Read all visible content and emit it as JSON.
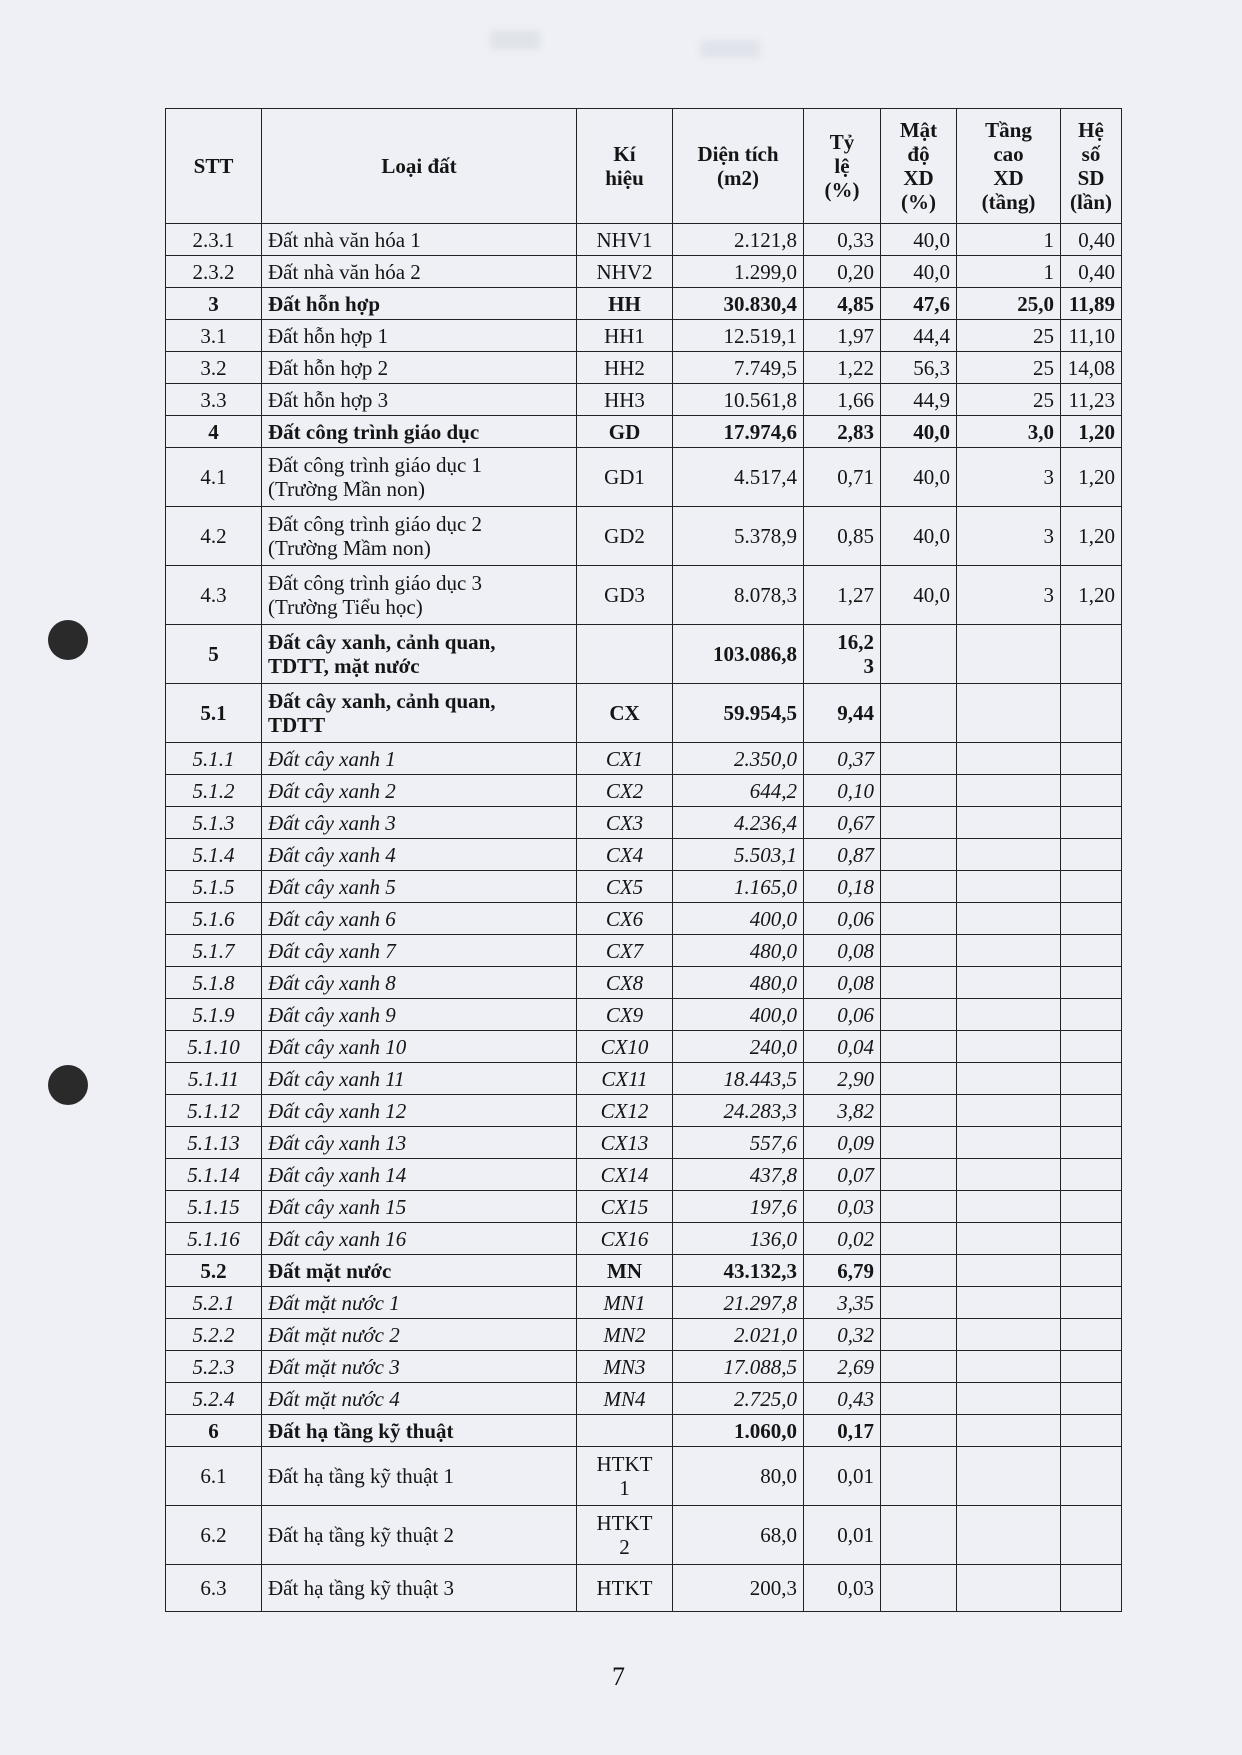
{
  "table": {
    "headers": [
      "STT",
      "Loại đất",
      "Kí\nhiệu",
      "Diện tích\n(m2)",
      "Tỷ\nlệ\n(%)",
      "Mật\nđộ\nXD\n(%)",
      "Tầng\ncao\nXD\n(tầng)",
      "Hệ số\nSD\n(lần)"
    ],
    "rows": [
      {
        "style": "normal",
        "size": "single",
        "cells": [
          "2.3.1",
          "Đất nhà văn hóa 1",
          "NHV1",
          "2.121,8",
          "0,33",
          "40,0",
          "1",
          "0,40"
        ]
      },
      {
        "style": "normal",
        "size": "single",
        "cells": [
          "2.3.2",
          "Đất nhà văn hóa 2",
          "NHV2",
          "1.299,0",
          "0,20",
          "40,0",
          "1",
          "0,40"
        ]
      },
      {
        "style": "bold",
        "size": "single",
        "cells": [
          "3",
          "Đất hỗn hợp",
          "HH",
          "30.830,4",
          "4,85",
          "47,6",
          "25,0",
          "11,89"
        ]
      },
      {
        "style": "normal",
        "size": "single",
        "cells": [
          "3.1",
          "Đất hỗn hợp 1",
          "HH1",
          "12.519,1",
          "1,97",
          "44,4",
          "25",
          "11,10"
        ]
      },
      {
        "style": "normal",
        "size": "single",
        "cells": [
          "3.2",
          "Đất hỗn hợp 2",
          "HH2",
          "7.749,5",
          "1,22",
          "56,3",
          "25",
          "14,08"
        ]
      },
      {
        "style": "normal",
        "size": "single",
        "cells": [
          "3.3",
          "Đất hỗn hợp 3",
          "HH3",
          "10.561,8",
          "1,66",
          "44,9",
          "25",
          "11,23"
        ]
      },
      {
        "style": "bold",
        "size": "single",
        "cells": [
          "4",
          "Đất công trình giáo dục",
          "GD",
          "17.974,6",
          "2,83",
          "40,0",
          "3,0",
          "1,20"
        ]
      },
      {
        "style": "normal",
        "size": "double",
        "cells": [
          "4.1",
          "Đất công trình giáo dục 1\n(Trường Mần non)",
          "GD1",
          "4.517,4",
          "0,71",
          "40,0",
          "3",
          "1,20"
        ]
      },
      {
        "style": "normal",
        "size": "double",
        "cells": [
          "4.2",
          "Đất công trình giáo dục 2\n(Trường Mầm non)",
          "GD2",
          "5.378,9",
          "0,85",
          "40,0",
          "3",
          "1,20"
        ]
      },
      {
        "style": "normal",
        "size": "double",
        "cells": [
          "4.3",
          "Đất công trình giáo dục 3\n(Trường Tiểu học)",
          "GD3",
          "8.078,3",
          "1,27",
          "40,0",
          "3",
          "1,20"
        ]
      },
      {
        "style": "bold",
        "size": "double",
        "cells": [
          "5",
          "Đất cây xanh, cảnh quan,\nTDTT, mặt nước",
          "",
          "103.086,8",
          "16,2\n3",
          "",
          "",
          ""
        ]
      },
      {
        "style": "bold",
        "size": "double",
        "cells": [
          "5.1",
          "Đất cây xanh, cảnh quan,\nTDTT",
          "CX",
          "59.954,5",
          "9,44",
          "",
          "",
          ""
        ]
      },
      {
        "style": "italic",
        "size": "single",
        "cells": [
          "5.1.1",
          "Đất cây xanh 1",
          "CX1",
          "2.350,0",
          "0,37",
          "",
          "",
          ""
        ]
      },
      {
        "style": "italic",
        "size": "single",
        "cells": [
          "5.1.2",
          "Đất cây xanh 2",
          "CX2",
          "644,2",
          "0,10",
          "",
          "",
          ""
        ]
      },
      {
        "style": "italic",
        "size": "single",
        "cells": [
          "5.1.3",
          "Đất cây xanh 3",
          "CX3",
          "4.236,4",
          "0,67",
          "",
          "",
          ""
        ]
      },
      {
        "style": "italic",
        "size": "single",
        "cells": [
          "5.1.4",
          "Đất cây xanh 4",
          "CX4",
          "5.503,1",
          "0,87",
          "",
          "",
          ""
        ]
      },
      {
        "style": "italic",
        "size": "single",
        "cells": [
          "5.1.5",
          "Đất cây xanh 5",
          "CX5",
          "1.165,0",
          "0,18",
          "",
          "",
          ""
        ]
      },
      {
        "style": "italic",
        "size": "single",
        "cells": [
          "5.1.6",
          "Đất cây xanh 6",
          "CX6",
          "400,0",
          "0,06",
          "",
          "",
          ""
        ]
      },
      {
        "style": "italic",
        "size": "single",
        "cells": [
          "5.1.7",
          "Đất cây xanh 7",
          "CX7",
          "480,0",
          "0,08",
          "",
          "",
          ""
        ]
      },
      {
        "style": "italic",
        "size": "single",
        "cells": [
          "5.1.8",
          "Đất cây xanh 8",
          "CX8",
          "480,0",
          "0,08",
          "",
          "",
          ""
        ]
      },
      {
        "style": "italic",
        "size": "single",
        "cells": [
          "5.1.9",
          "Đất cây xanh 9",
          "CX9",
          "400,0",
          "0,06",
          "",
          "",
          ""
        ]
      },
      {
        "style": "italic",
        "size": "single",
        "cells": [
          "5.1.10",
          "Đất cây xanh 10",
          "CX10",
          "240,0",
          "0,04",
          "",
          "",
          ""
        ]
      },
      {
        "style": "italic",
        "size": "single",
        "cells": [
          "5.1.11",
          "Đất cây xanh 11",
          "CX11",
          "18.443,5",
          "2,90",
          "",
          "",
          ""
        ]
      },
      {
        "style": "italic",
        "size": "single",
        "cells": [
          "5.1.12",
          "Đất cây xanh 12",
          "CX12",
          "24.283,3",
          "3,82",
          "",
          "",
          ""
        ]
      },
      {
        "style": "italic",
        "size": "single",
        "cells": [
          "5.1.13",
          "Đất cây xanh 13",
          "CX13",
          "557,6",
          "0,09",
          "",
          "",
          ""
        ]
      },
      {
        "style": "italic",
        "size": "single",
        "cells": [
          "5.1.14",
          "Đất cây xanh 14",
          "CX14",
          "437,8",
          "0,07",
          "",
          "",
          ""
        ]
      },
      {
        "style": "italic",
        "size": "single",
        "cells": [
          "5.1.15",
          "Đất cây xanh 15",
          "CX15",
          "197,6",
          "0,03",
          "",
          "",
          ""
        ]
      },
      {
        "style": "italic",
        "size": "single",
        "cells": [
          "5.1.16",
          "Đất cây xanh 16",
          "CX16",
          "136,0",
          "0,02",
          "",
          "",
          ""
        ]
      },
      {
        "style": "bold",
        "size": "single",
        "cells": [
          "5.2",
          "Đất mặt nước",
          "MN",
          "43.132,3",
          "6,79",
          "",
          "",
          ""
        ]
      },
      {
        "style": "italic",
        "size": "single",
        "cells": [
          "5.2.1",
          "Đất mặt nước 1",
          "MN1",
          "21.297,8",
          "3,35",
          "",
          "",
          ""
        ]
      },
      {
        "style": "italic",
        "size": "single",
        "cells": [
          "5.2.2",
          "Đất mặt nước 2",
          "MN2",
          "2.021,0",
          "0,32",
          "",
          "",
          ""
        ]
      },
      {
        "style": "italic",
        "size": "single",
        "cells": [
          "5.2.3",
          "Đất mặt nước 3",
          "MN3",
          "17.088,5",
          "2,69",
          "",
          "",
          ""
        ]
      },
      {
        "style": "italic",
        "size": "single",
        "cells": [
          "5.2.4",
          "Đất mặt nước 4",
          "MN4",
          "2.725,0",
          "0,43",
          "",
          "",
          ""
        ]
      },
      {
        "style": "bold",
        "size": "single",
        "cells": [
          "6",
          "Đất hạ tầng kỹ thuật",
          "",
          "1.060,0",
          "0,17",
          "",
          "",
          ""
        ]
      },
      {
        "style": "normal",
        "size": "double",
        "cells": [
          "6.1",
          "Đất hạ tầng kỹ thuật 1",
          "HTKT\n1",
          "80,0",
          "0,01",
          "",
          "",
          ""
        ]
      },
      {
        "style": "normal",
        "size": "double",
        "cells": [
          "6.2",
          "Đất hạ tầng kỹ thuật 2",
          "HTKT\n2",
          "68,0",
          "0,01",
          "",
          "",
          ""
        ]
      },
      {
        "style": "normal",
        "size": "last",
        "cells": [
          "6.3",
          "Đất hạ tầng kỹ thuật 3",
          "HTKT",
          "200,3",
          "0,03",
          "",
          "",
          ""
        ]
      }
    ]
  },
  "page_number": "7"
}
